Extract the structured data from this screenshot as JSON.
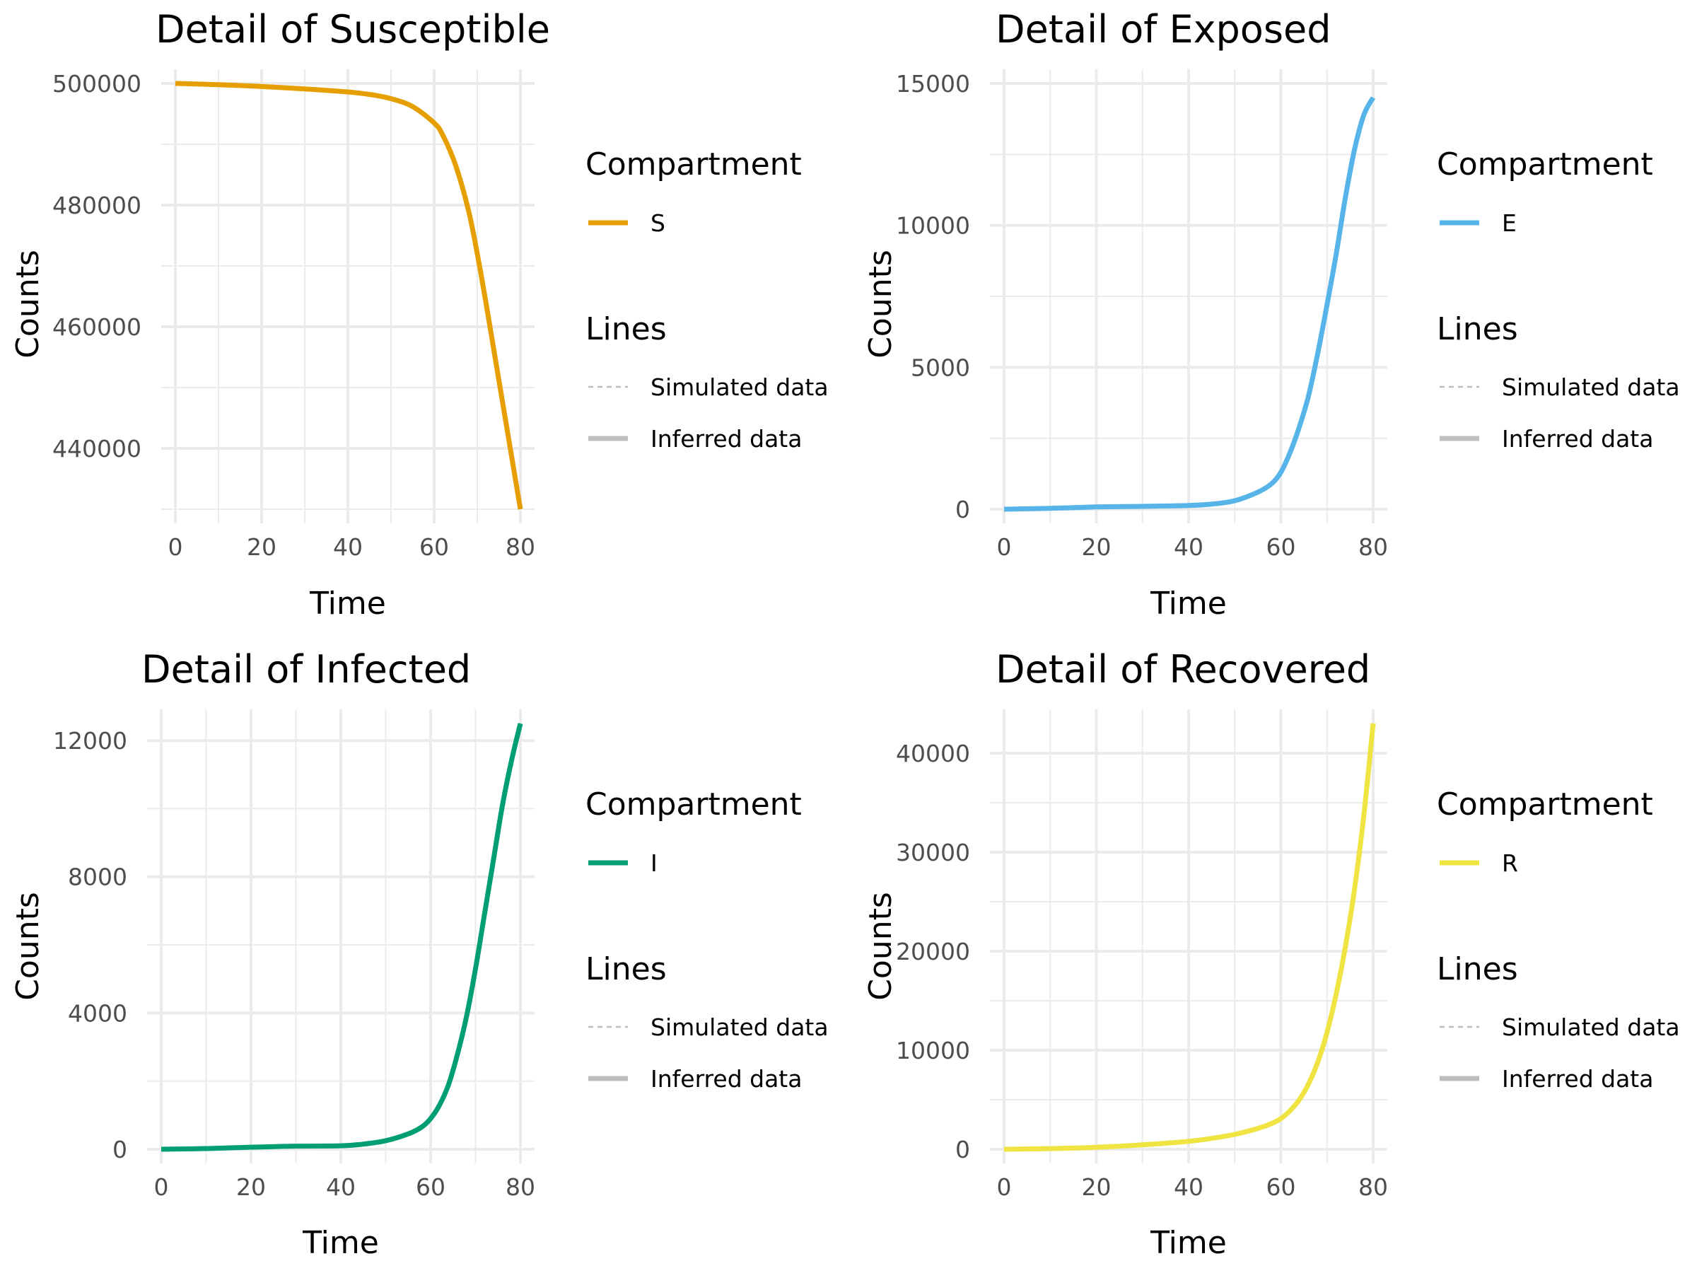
{
  "chart_data": [
    {
      "type": "line",
      "title": "Detail of Susceptible",
      "xlabel": "Time",
      "ylabel": "Counts",
      "xlim": [
        0,
        80
      ],
      "ylim": [
        430000,
        500000
      ],
      "x_ticks": [
        0,
        20,
        40,
        60,
        80
      ],
      "y_ticks": [
        440000,
        460000,
        480000,
        500000
      ],
      "y_tick_labels": [
        "440000",
        "460000",
        "480000",
        "500000"
      ],
      "grid": true,
      "color": "#E69F00",
      "series": [
        {
          "name": "S",
          "x": [
            0,
            10,
            20,
            30,
            40,
            45,
            50,
            55,
            60,
            62,
            65,
            68,
            70,
            72,
            74,
            76,
            78,
            80
          ],
          "y": [
            500000,
            499800,
            499500,
            499100,
            498600,
            498200,
            497500,
            496200,
            493500,
            491500,
            486500,
            479000,
            472000,
            464000,
            455500,
            447000,
            438500,
            430000
          ]
        }
      ],
      "legend": {
        "position": "right",
        "groups": [
          {
            "title": "Compartment",
            "items": [
              {
                "label": "S",
                "style": "solid",
                "color": "#E69F00"
              }
            ]
          },
          {
            "title": "Lines",
            "items": [
              {
                "label": "Simulated data",
                "style": "dashed",
                "color": "#BEBEBE"
              },
              {
                "label": "Inferred data",
                "style": "solid",
                "color": "#BEBEBE"
              }
            ]
          }
        ]
      }
    },
    {
      "type": "line",
      "title": "Detail of Exposed",
      "xlabel": "Time",
      "ylabel": "Counts",
      "xlim": [
        0,
        80
      ],
      "ylim": [
        0,
        15000
      ],
      "x_ticks": [
        0,
        20,
        40,
        60,
        80
      ],
      "y_ticks": [
        0,
        5000,
        10000,
        15000
      ],
      "y_tick_labels": [
        "0",
        "5000",
        "10000",
        "15000"
      ],
      "grid": true,
      "color": "#56B4E9",
      "series": [
        {
          "name": "E",
          "x": [
            0,
            10,
            20,
            30,
            40,
            45,
            50,
            55,
            58,
            60,
            62,
            64,
            66,
            68,
            70,
            72,
            74,
            76,
            78,
            80
          ],
          "y": [
            0,
            30,
            80,
            100,
            130,
            180,
            300,
            600,
            900,
            1300,
            2000,
            2900,
            4000,
            5500,
            7200,
            9000,
            11000,
            12700,
            13900,
            14500
          ]
        }
      ],
      "legend": {
        "position": "right",
        "groups": [
          {
            "title": "Compartment",
            "items": [
              {
                "label": "E",
                "style": "solid",
                "color": "#56B4E9"
              }
            ]
          },
          {
            "title": "Lines",
            "items": [
              {
                "label": "Simulated data",
                "style": "dashed",
                "color": "#BEBEBE"
              },
              {
                "label": "Inferred data",
                "style": "solid",
                "color": "#BEBEBE"
              }
            ]
          }
        ]
      }
    },
    {
      "type": "line",
      "title": "Detail of Infected",
      "xlabel": "Time",
      "ylabel": "Counts",
      "xlim": [
        0,
        80
      ],
      "ylim": [
        0,
        12500
      ],
      "x_ticks": [
        0,
        20,
        40,
        60,
        80
      ],
      "y_ticks": [
        0,
        4000,
        8000,
        12000
      ],
      "y_tick_labels": [
        "0",
        "4000",
        "8000",
        "12000"
      ],
      "grid": true,
      "color": "#009E73",
      "series": [
        {
          "name": "I",
          "x": [
            0,
            10,
            20,
            30,
            40,
            45,
            50,
            55,
            58,
            60,
            62,
            64,
            66,
            68,
            70,
            72,
            74,
            76,
            78,
            80
          ],
          "y": [
            0,
            20,
            60,
            90,
            100,
            150,
            250,
            450,
            650,
            900,
            1300,
            1900,
            2800,
            3900,
            5300,
            6900,
            8500,
            10100,
            11400,
            12500
          ]
        }
      ],
      "legend": {
        "position": "right",
        "groups": [
          {
            "title": "Compartment",
            "items": [
              {
                "label": "I",
                "style": "solid",
                "color": "#009E73"
              }
            ]
          },
          {
            "title": "Lines",
            "items": [
              {
                "label": "Simulated data",
                "style": "dashed",
                "color": "#BEBEBE"
              },
              {
                "label": "Inferred data",
                "style": "solid",
                "color": "#BEBEBE"
              }
            ]
          }
        ]
      }
    },
    {
      "type": "line",
      "title": "Detail of Recovered",
      "xlabel": "Time",
      "ylabel": "Counts",
      "xlim": [
        0,
        80
      ],
      "ylim": [
        0,
        43000
      ],
      "x_ticks": [
        0,
        20,
        40,
        60,
        80
      ],
      "y_ticks": [
        0,
        10000,
        20000,
        30000,
        40000
      ],
      "y_tick_labels": [
        "0",
        "10000",
        "20000",
        "30000",
        "40000"
      ],
      "grid": true,
      "color": "#F0E442",
      "series": [
        {
          "name": "R",
          "x": [
            0,
            10,
            20,
            30,
            40,
            45,
            50,
            55,
            58,
            60,
            62,
            64,
            66,
            68,
            70,
            72,
            74,
            76,
            78,
            80
          ],
          "y": [
            0,
            60,
            200,
            450,
            800,
            1100,
            1500,
            2100,
            2600,
            3100,
            3900,
            5000,
            6600,
            8800,
            11800,
            15700,
            20500,
            26400,
            33800,
            43000
          ]
        }
      ],
      "legend": {
        "position": "right",
        "groups": [
          {
            "title": "Compartment",
            "items": [
              {
                "label": "R",
                "style": "solid",
                "color": "#F0E442"
              }
            ]
          },
          {
            "title": "Lines",
            "items": [
              {
                "label": "Simulated data",
                "style": "dashed",
                "color": "#BEBEBE"
              },
              {
                "label": "Inferred data",
                "style": "solid",
                "color": "#BEBEBE"
              }
            ]
          }
        ]
      }
    }
  ]
}
